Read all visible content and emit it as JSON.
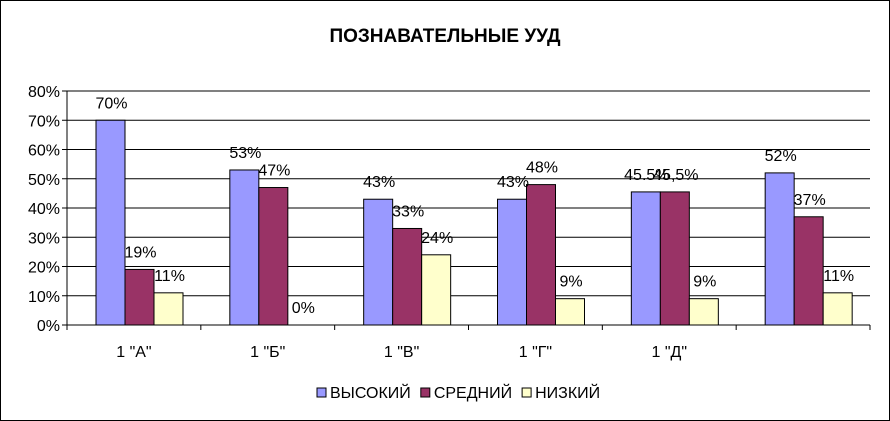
{
  "chart_data": {
    "type": "bar",
    "title": "ПОЗНАВАТЕЛЬНЫЕ УУД",
    "categories": [
      "1 \"А\"",
      "1 \"Б\"",
      "1 \"В\"",
      "1 \"Г\"",
      "1 \"Д\"",
      ""
    ],
    "series": [
      {
        "name": "ВЫСОКИЙ",
        "color": "#9999FF",
        "values": [
          70,
          53,
          43,
          43,
          45.5,
          52
        ],
        "labels": [
          "70%",
          "53%",
          "43%",
          "43%",
          "45.5%",
          "52%"
        ]
      },
      {
        "name": "СРЕДНИЙ",
        "color": "#993366",
        "values": [
          19,
          47,
          33,
          48,
          45.5,
          37
        ],
        "labels": [
          "19%",
          "47%",
          "33%",
          "48%",
          "45,5%",
          "37%"
        ]
      },
      {
        "name": "НИЗКИЙ",
        "color": "#FFFFCC",
        "values": [
          11,
          0,
          24,
          9,
          9,
          11
        ],
        "labels": [
          "11%",
          "0%",
          "24%",
          "9%",
          "9%",
          "11%"
        ]
      }
    ],
    "ylim": [
      0,
      80
    ],
    "yticks": [
      0,
      10,
      20,
      30,
      40,
      50,
      60,
      70,
      80
    ],
    "ytick_labels": [
      "0%",
      "10%",
      "20%",
      "30%",
      "40%",
      "50%",
      "60%",
      "70%",
      "80%"
    ],
    "grid": true,
    "legend_position": "bottom"
  }
}
